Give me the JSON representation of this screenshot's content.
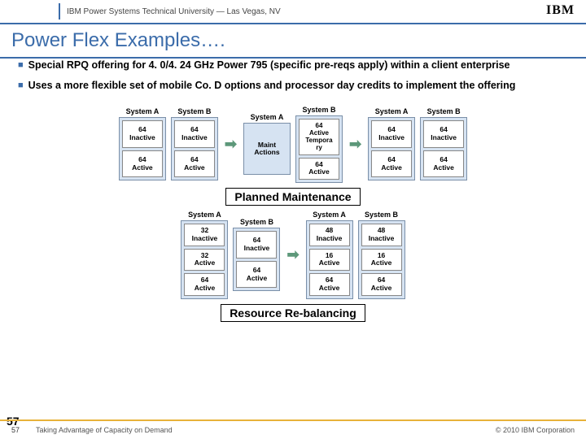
{
  "header": {
    "text": "IBM Power Systems Technical University  —  Las Vegas, NV",
    "logo": "IBM"
  },
  "title": "Power Flex Examples….",
  "bullets": [
    "Special RPQ offering for 4. 0/4. 24 GHz Power 795  (specific pre-reqs apply) within a client enterprise",
    "Uses a more flexible set of mobile Co. D options and processor day credits to implement the offering"
  ],
  "row1": {
    "s1": {
      "label": "System A",
      "cells": [
        "64\nInactive",
        "64\nActive"
      ]
    },
    "s2": {
      "label": "System B",
      "cells": [
        "64\nInactive",
        "64\nActive"
      ]
    },
    "s3": {
      "label": "System A",
      "cells": [
        "Maint\nActions"
      ]
    },
    "s4": {
      "label": "System B",
      "cells": [
        "64\nActive\nTempora\nry",
        "64\nActive"
      ]
    },
    "s5": {
      "label": "System A",
      "cells": [
        "64\nInactive",
        "64\nActive"
      ]
    },
    "s6": {
      "label": "System B",
      "cells": [
        "64\nInactive",
        "64\nActive"
      ]
    }
  },
  "section1": "Planned Maintenance",
  "row2": {
    "s1": {
      "label": "System A",
      "cells": [
        "32\nInactive",
        "32\nActive",
        "64\nActive"
      ]
    },
    "s2": {
      "label": "System B",
      "cells": [
        "64\nInactive",
        "64\nActive"
      ]
    },
    "s3": {
      "label": "System A",
      "cells": [
        "48\nInactive",
        "16\nActive",
        "64\nActive"
      ]
    },
    "s4": {
      "label": "System B",
      "cells": [
        "48\nInactive",
        "16\nActive",
        "64\nActive"
      ]
    }
  },
  "section2": "Resource Re-balancing",
  "footer": {
    "page_big": "57",
    "page": "57",
    "title": "Taking Advantage of Capacity on Demand",
    "copy": "© 2010 IBM Corporation"
  }
}
